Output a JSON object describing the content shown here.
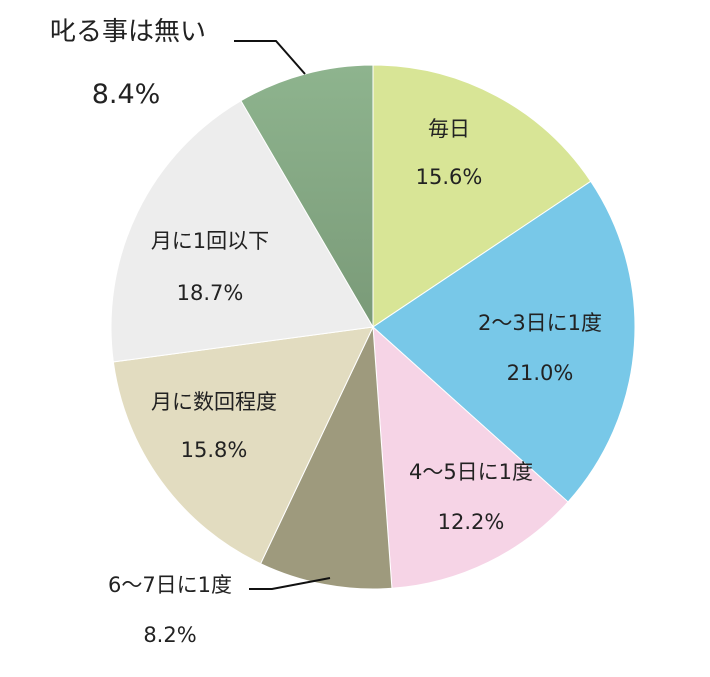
{
  "chart_data": {
    "type": "pie",
    "title": "",
    "start_angle_deg": 0,
    "direction": "clockwise",
    "slices": [
      {
        "label": "毎日",
        "value": 15.6,
        "value_label": "15.6%",
        "color": "#D8E596"
      },
      {
        "label": "2～3日に1度",
        "value": 21.0,
        "value_label": "21.0%",
        "color": "#78C8E8"
      },
      {
        "label": "4～5日に1度",
        "value": 12.2,
        "value_label": "12.2%",
        "color": "#F6D4E6"
      },
      {
        "label": "6～7日に1度",
        "value": 8.2,
        "value_label": "8.2%",
        "color": "#9E9A7D"
      },
      {
        "label": "月に数回程度",
        "value": 15.8,
        "value_label": "15.8%",
        "color": "#E2DCC0"
      },
      {
        "label": "月に1回以下",
        "value": 18.7,
        "value_label": "18.7%",
        "color": "#EDEDED"
      },
      {
        "label": "叱る事は無い",
        "value": 8.4,
        "value_label": "8.4%",
        "color": "#8EB48E",
        "gradient_to": "#7A9A78"
      }
    ]
  }
}
